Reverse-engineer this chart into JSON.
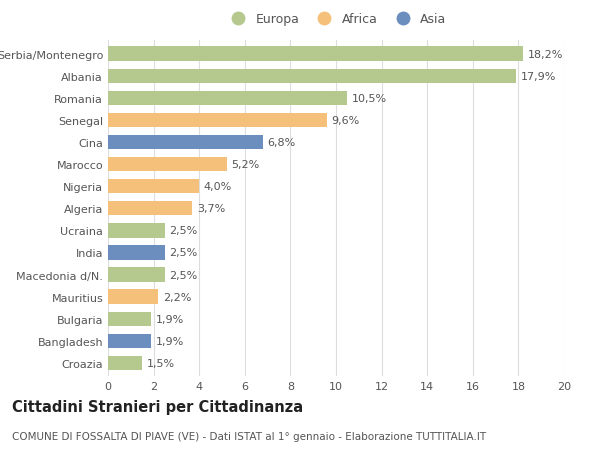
{
  "categories": [
    "Serbia/Montenegro",
    "Albania",
    "Romania",
    "Senegal",
    "Cina",
    "Marocco",
    "Nigeria",
    "Algeria",
    "Ucraina",
    "India",
    "Macedonia d/N.",
    "Mauritius",
    "Bulgaria",
    "Bangladesh",
    "Croazia"
  ],
  "values": [
    18.2,
    17.9,
    10.5,
    9.6,
    6.8,
    5.2,
    4.0,
    3.7,
    2.5,
    2.5,
    2.5,
    2.2,
    1.9,
    1.9,
    1.5
  ],
  "labels": [
    "18,2%",
    "17,9%",
    "10,5%",
    "9,6%",
    "6,8%",
    "5,2%",
    "4,0%",
    "3,7%",
    "2,5%",
    "2,5%",
    "2,5%",
    "2,2%",
    "1,9%",
    "1,9%",
    "1,5%"
  ],
  "continents": [
    "Europa",
    "Europa",
    "Europa",
    "Africa",
    "Asia",
    "Africa",
    "Africa",
    "Africa",
    "Europa",
    "Asia",
    "Europa",
    "Africa",
    "Europa",
    "Asia",
    "Europa"
  ],
  "continent_colors": {
    "Europa": "#b5c98e",
    "Africa": "#f4c07a",
    "Asia": "#6c8ebf"
  },
  "legend_order": [
    "Europa",
    "Africa",
    "Asia"
  ],
  "xlim": [
    0,
    20
  ],
  "xticks": [
    0,
    2,
    4,
    6,
    8,
    10,
    12,
    14,
    16,
    18,
    20
  ],
  "title": "Cittadini Stranieri per Cittadinanza",
  "subtitle": "COMUNE DI FOSSALTA DI PIAVE (VE) - Dati ISTAT al 1° gennaio - Elaborazione TUTTITALIA.IT",
  "background_color": "#ffffff",
  "grid_color": "#dddddd",
  "bar_height": 0.65,
  "label_fontsize": 8.0,
  "tick_fontsize": 8.0,
  "title_fontsize": 10.5,
  "subtitle_fontsize": 7.5
}
